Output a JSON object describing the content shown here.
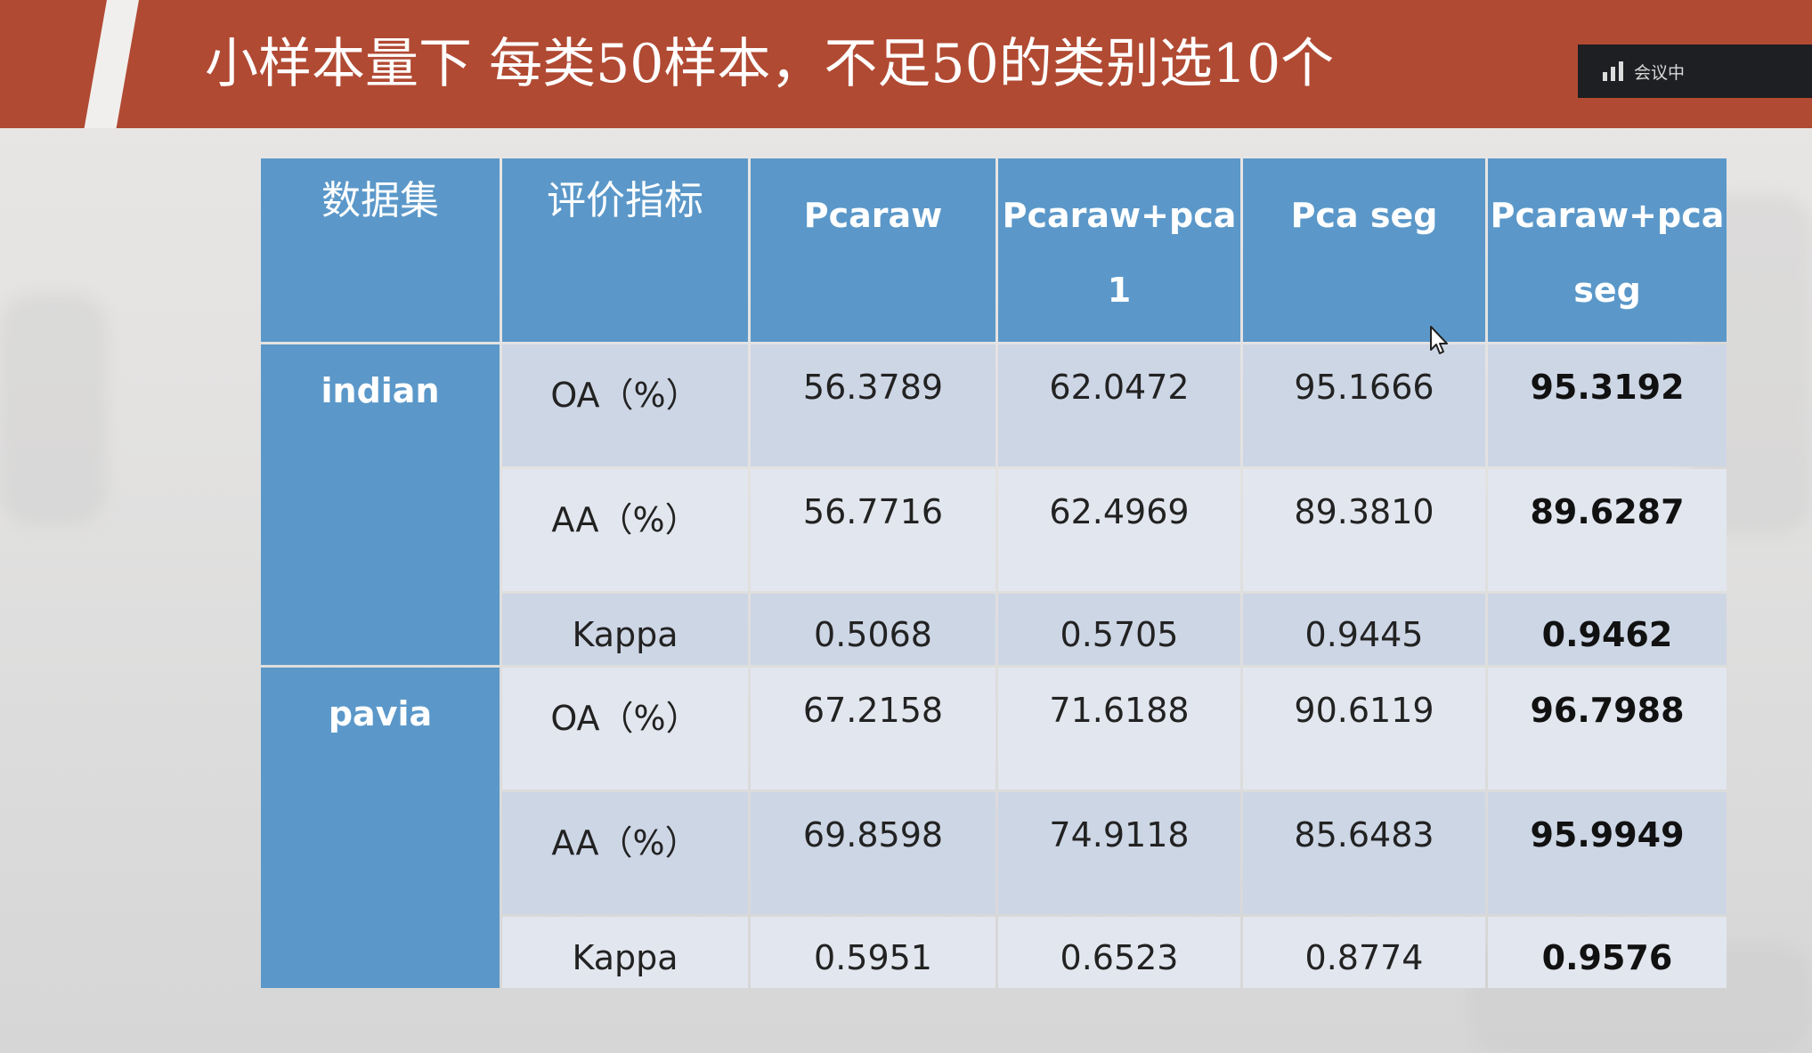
{
  "slide": {
    "title": "小样本量下  每类50样本，不足50的类别选10个"
  },
  "meeting_badge": {
    "label": "会议中",
    "icon": "signal-bars-icon"
  },
  "table": {
    "headers": [
      {
        "lines": [
          "数据集"
        ]
      },
      {
        "lines": [
          "评价指标"
        ]
      },
      {
        "lines": [
          "Pcaraw"
        ]
      },
      {
        "lines": [
          "Pcaraw+pca",
          "1"
        ]
      },
      {
        "lines": [
          "Pca seg"
        ]
      },
      {
        "lines": [
          "Pcaraw+pca",
          "seg"
        ]
      }
    ],
    "groups": [
      {
        "dataset": "indian",
        "rows": [
          {
            "metric": "OA（%）",
            "values": [
              "56.3789",
              "62.0472",
              "95.1666",
              "95.3192"
            ]
          },
          {
            "metric": "AA（%）",
            "values": [
              "56.7716",
              "62.4969",
              "89.3810",
              "89.6287"
            ]
          },
          {
            "metric": "Kappa",
            "values": [
              "0.5068",
              "0.5705",
              "0.9445",
              "0.9462"
            ]
          }
        ]
      },
      {
        "dataset": "pavia",
        "rows": [
          {
            "metric": "OA（%）",
            "values": [
              "67.2158",
              "71.6188",
              "90.6119",
              "96.7988"
            ]
          },
          {
            "metric": "AA（%）",
            "values": [
              "69.8598",
              "74.9118",
              "85.6483",
              "95.9949"
            ]
          },
          {
            "metric": "Kappa",
            "values": [
              "0.5951",
              "0.6523",
              "0.8774",
              "0.9576"
            ]
          }
        ]
      }
    ]
  },
  "colors": {
    "title_bar": "#b14a33",
    "header_blue": "#5b98c9",
    "row_dark": "#cdd6e5",
    "row_light": "#e2e6ee"
  }
}
